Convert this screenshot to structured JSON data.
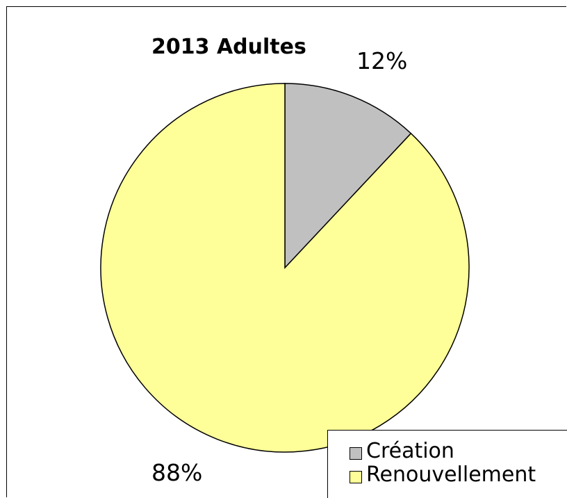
{
  "chart_data": {
    "type": "pie",
    "title": "2013 Adultes",
    "categories": [
      "Création",
      "Renouvellement"
    ],
    "values": [
      12,
      88
    ],
    "value_labels": [
      "12%",
      "88%"
    ],
    "colors": [
      "#c0c0c0",
      "#ffff99"
    ],
    "legend": "bottom-right",
    "start_angle_deg": 0,
    "direction": "clockwise"
  }
}
